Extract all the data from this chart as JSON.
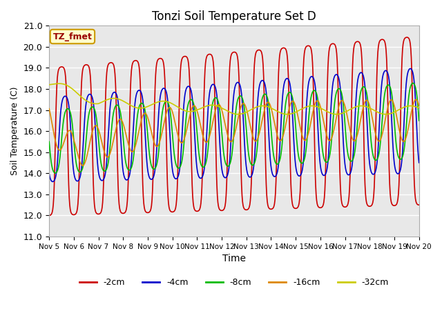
{
  "title": "Tonzi Soil Temperature Set D",
  "xlabel": "Time",
  "ylabel": "Soil Temperature (C)",
  "ylim": [
    11.0,
    21.0
  ],
  "yticks": [
    11.0,
    12.0,
    13.0,
    14.0,
    15.0,
    16.0,
    17.0,
    18.0,
    19.0,
    20.0,
    21.0
  ],
  "xtick_labels": [
    "Nov 5",
    "Nov 6",
    "Nov 7",
    "Nov 8",
    "Nov 9",
    "Nov 10",
    "Nov 11",
    "Nov 12",
    "Nov 13",
    "Nov 14",
    "Nov 15",
    "Nov 16",
    "Nov 17",
    "Nov 18",
    "Nov 19",
    "Nov 20"
  ],
  "legend_labels": [
    "-2cm",
    "-4cm",
    "-8cm",
    "-16cm",
    "-32cm"
  ],
  "legend_colors": [
    "#cc0000",
    "#0000cc",
    "#00bb00",
    "#dd8800",
    "#cccc00"
  ],
  "annotation_text": "TZ_fmet",
  "annotation_bg": "#ffffcc",
  "annotation_border": "#cc9900",
  "background_color": "#e8e8e8",
  "grid_color": "#ffffff",
  "line_width": 1.2
}
